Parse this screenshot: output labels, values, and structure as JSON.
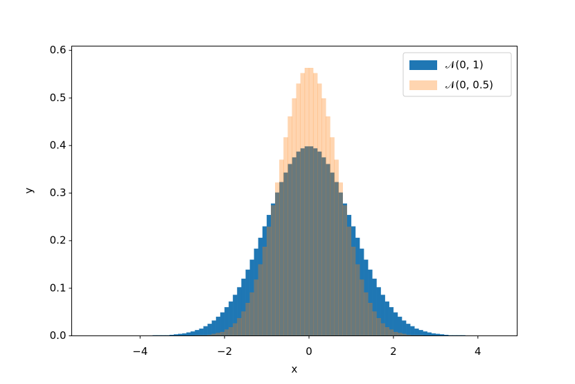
{
  "chart_data": {
    "type": "histogram",
    "xlabel": "x",
    "ylabel": "y",
    "xlim": [
      -5.62,
      4.93
    ],
    "ylim": [
      0,
      0.609
    ],
    "xticks": [
      {
        "value": -4,
        "label": "−4"
      },
      {
        "value": -2,
        "label": "−2"
      },
      0,
      2,
      4
    ],
    "yticks": [
      {
        "value": 0,
        "label": "0.0"
      },
      0.1,
      0.2,
      0.3,
      0.4,
      0.5,
      0.6
    ],
    "legend": "upper right",
    "series": [
      {
        "name": "𝒩(0, 1)",
        "color": "#1f77b4",
        "alpha": 1,
        "bins": [
          -4,
          -3.9,
          -3.8,
          -3.7,
          -3.6,
          -3.5,
          -3.4,
          -3.3,
          -3.2,
          -3.1,
          -3,
          -2.9,
          -2.8,
          -2.7,
          -2.6,
          -2.5,
          -2.4,
          -2.3,
          -2.2,
          -2.1,
          -2,
          -1.9,
          -1.8,
          -1.7,
          -1.6,
          -1.5,
          -1.4,
          -1.3,
          -1.2,
          -1.1,
          -1,
          -0.9,
          -0.8,
          -0.7,
          -0.6,
          -0.5,
          -0.4,
          -0.3,
          -0.2,
          -0.1,
          0,
          0.1,
          0.2,
          0.3,
          0.4,
          0.5,
          0.6,
          0.7,
          0.8,
          0.9,
          1,
          1.1,
          1.2,
          1.3,
          1.4,
          1.5,
          1.6,
          1.7,
          1.8,
          1.9,
          2,
          2.1,
          2.2,
          2.3,
          2.4,
          2.5,
          2.6,
          2.7,
          2.8,
          2.9,
          3,
          3.1,
          3.2,
          3.3,
          3.4,
          3.5,
          3.6,
          3.7,
          3.8,
          3.9,
          4
        ],
        "values": [
          0,
          0,
          0,
          0.001,
          0.001,
          0.001,
          0.001,
          0.002,
          0.003,
          0.004,
          0.005,
          0.007,
          0.009,
          0.012,
          0.015,
          0.02,
          0.025,
          0.032,
          0.04,
          0.049,
          0.06,
          0.072,
          0.086,
          0.102,
          0.12,
          0.139,
          0.16,
          0.183,
          0.206,
          0.23,
          0.254,
          0.278,
          0.301,
          0.323,
          0.343,
          0.361,
          0.375,
          0.387,
          0.394,
          0.398,
          0.398,
          0.394,
          0.387,
          0.375,
          0.361,
          0.343,
          0.323,
          0.301,
          0.278,
          0.254,
          0.23,
          0.206,
          0.183,
          0.16,
          0.139,
          0.12,
          0.102,
          0.086,
          0.072,
          0.06,
          0.049,
          0.04,
          0.032,
          0.025,
          0.02,
          0.015,
          0.012,
          0.009,
          0.007,
          0.005,
          0.004,
          0.003,
          0.002,
          0.001,
          0.001,
          0.001,
          0.001,
          0,
          0,
          0
        ]
      },
      {
        "name": "𝒩(0, 0.5)",
        "color": "#ff7f0e",
        "alpha": 0.33,
        "bins": [
          -3,
          -2.9,
          -2.8,
          -2.7,
          -2.6,
          -2.5,
          -2.4,
          -2.3,
          -2.2,
          -2.1,
          -2,
          -1.9,
          -1.8,
          -1.7,
          -1.6,
          -1.5,
          -1.4,
          -1.3,
          -1.2,
          -1.1,
          -1,
          -0.9,
          -0.8,
          -0.7,
          -0.6,
          -0.5,
          -0.4,
          -0.3,
          -0.2,
          -0.1,
          0,
          0.1,
          0.2,
          0.3,
          0.4,
          0.5,
          0.6,
          0.7,
          0.8,
          0.9,
          1,
          1.1,
          1.2,
          1.3,
          1.4,
          1.5,
          1.6,
          1.7,
          1.8,
          1.9,
          2,
          2.1,
          2.2,
          2.3,
          2.4,
          2.5,
          2.6,
          2.7,
          2.8,
          2.9,
          3
        ],
        "values": [
          0,
          0,
          0,
          0.001,
          0.001,
          0.001,
          0.002,
          0.004,
          0.006,
          0.008,
          0.013,
          0.018,
          0.026,
          0.037,
          0.051,
          0.069,
          0.091,
          0.118,
          0.15,
          0.187,
          0.229,
          0.274,
          0.322,
          0.37,
          0.417,
          0.461,
          0.499,
          0.53,
          0.552,
          0.563,
          0.563,
          0.552,
          0.53,
          0.499,
          0.461,
          0.417,
          0.37,
          0.322,
          0.274,
          0.229,
          0.187,
          0.15,
          0.118,
          0.091,
          0.069,
          0.051,
          0.037,
          0.026,
          0.018,
          0.013,
          0.008,
          0.006,
          0.004,
          0.002,
          0.001,
          0.001,
          0.001,
          0,
          0,
          0
        ]
      }
    ]
  }
}
